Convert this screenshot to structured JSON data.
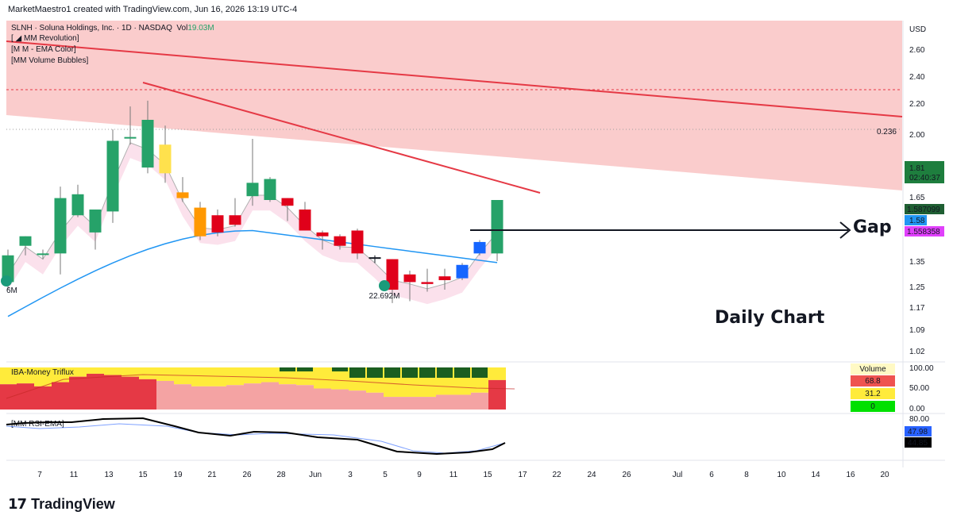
{
  "header": {
    "credit": "MarketMaestro1 created with TradingView.com, Jun 16, 2026 13:19 UTC-4"
  },
  "symbol": {
    "title": "SLNH · Soluna Holdings, Inc. · 1D · NASDAQ",
    "vol_label": "Vol",
    "vol_value": "19.03M",
    "indicators": [
      "[ ◢ MM Revolution]",
      "[M M - EMA Color]",
      "[MM Volume Bubbles]"
    ]
  },
  "annotations": {
    "daily_chart": "Daily Chart",
    "gap": "Gap",
    "fib_label": "0.236",
    "volume_bubble": "22.692M",
    "left_bubble_label": "6M"
  },
  "price_axis": {
    "currency": "USD",
    "ticks": [
      "2.60",
      "2.40",
      "2.20",
      "2.00",
      "1.81",
      "1.65",
      "1.58",
      "1.45",
      "1.35",
      "1.25",
      "1.17",
      "1.09",
      "1.02"
    ],
    "last_price": "1.81",
    "countdown": "02:40:37",
    "ema1": "1.587099",
    "ema2": "1.58",
    "ema3": "1.558358"
  },
  "time_axis": {
    "ticks": [
      "7",
      "11",
      "13",
      "15",
      "19",
      "21",
      "26",
      "28",
      "Jun",
      "3",
      "5",
      "9",
      "11",
      "15",
      "17",
      "22",
      "24",
      "26",
      "Jul",
      "6",
      "8",
      "10",
      "14",
      "16",
      "20"
    ]
  },
  "money_panel": {
    "title": "IBA-Money Triflux",
    "ticks": [
      "100.00",
      "50.00",
      "0.00"
    ],
    "table": [
      {
        "label": "Volume",
        "color": "#fff9c4"
      },
      {
        "label": "68.8",
        "color": "#ef5350"
      },
      {
        "label": "31.2",
        "color": "#ffeb3b"
      },
      {
        "label": "0",
        "color": "#4caf50"
      }
    ]
  },
  "rsi_panel": {
    "title": "[MM RSI-EMA]",
    "ticks": [
      "80.00"
    ],
    "rsi_value": "47.98",
    "ema_value": "44.85",
    "rsi_color": "#2962ff",
    "ema_color": "#000000"
  },
  "branding": {
    "logo_mark": "17",
    "logo_text": "TradingView"
  },
  "colors": {
    "up": "#26a269",
    "down": "#e0001a",
    "orange": "#ff9800",
    "yellow": "#ffe14d",
    "blue": "#1565ff",
    "trend": "#e53945",
    "zone": "#f9b4b4",
    "ema_blue": "#2196f3"
  },
  "chart_data": {
    "type": "candlestick",
    "symbol": "SLNH",
    "interval": "1D",
    "ylim": [
      1.0,
      2.7
    ],
    "candles": [
      {
        "o": 1.38,
        "h": 1.55,
        "l": 1.34,
        "c": 1.52,
        "color": "up"
      },
      {
        "o": 1.57,
        "h": 1.62,
        "l": 1.52,
        "c": 1.62,
        "color": "up"
      },
      {
        "o": 1.53,
        "h": 1.55,
        "l": 1.5,
        "c": 1.53,
        "color": "up"
      },
      {
        "o": 1.53,
        "h": 1.88,
        "l": 1.42,
        "c": 1.82,
        "color": "up"
      },
      {
        "o": 1.73,
        "h": 1.89,
        "l": 1.72,
        "c": 1.84,
        "color": "up"
      },
      {
        "o": 1.64,
        "h": 1.76,
        "l": 1.55,
        "c": 1.76,
        "color": "up"
      },
      {
        "o": 1.75,
        "h": 2.18,
        "l": 1.69,
        "c": 2.12,
        "color": "up"
      },
      {
        "o": 2.14,
        "h": 2.3,
        "l": 2.1,
        "c": 2.14,
        "color": "up"
      },
      {
        "o": 1.98,
        "h": 2.33,
        "l": 1.95,
        "c": 2.23,
        "color": "up"
      },
      {
        "o": 2.1,
        "h": 2.2,
        "l": 1.9,
        "c": 1.95,
        "color": "yellow"
      },
      {
        "o": 1.85,
        "h": 1.93,
        "l": 1.8,
        "c": 1.82,
        "color": "orange"
      },
      {
        "o": 1.77,
        "h": 1.8,
        "l": 1.6,
        "c": 1.62,
        "color": "orange"
      },
      {
        "o": 1.73,
        "h": 1.76,
        "l": 1.62,
        "c": 1.64,
        "color": "down"
      },
      {
        "o": 1.73,
        "h": 1.82,
        "l": 1.67,
        "c": 1.68,
        "color": "down"
      },
      {
        "o": 1.83,
        "h": 2.13,
        "l": 1.78,
        "c": 1.9,
        "color": "up"
      },
      {
        "o": 1.81,
        "h": 1.93,
        "l": 1.8,
        "c": 1.92,
        "color": "up"
      },
      {
        "o": 1.78,
        "h": 1.82,
        "l": 1.7,
        "c": 1.82,
        "color": "down"
      },
      {
        "o": 1.76,
        "h": 1.8,
        "l": 1.65,
        "c": 1.65,
        "color": "down"
      },
      {
        "o": 1.64,
        "h": 1.65,
        "l": 1.55,
        "c": 1.62,
        "color": "down"
      },
      {
        "o": 1.62,
        "h": 1.63,
        "l": 1.55,
        "c": 1.57,
        "color": "down"
      },
      {
        "o": 1.65,
        "h": 1.66,
        "l": 1.5,
        "c": 1.53,
        "color": "down"
      },
      {
        "o": 1.51,
        "h": 1.52,
        "l": 1.48,
        "c": 1.51,
        "color": "doji"
      },
      {
        "o": 1.5,
        "h": 1.5,
        "l": 1.27,
        "c": 1.34,
        "color": "down"
      },
      {
        "o": 1.42,
        "h": 1.44,
        "l": 1.28,
        "c": 1.38,
        "color": "down"
      },
      {
        "o": 1.38,
        "h": 1.45,
        "l": 1.33,
        "c": 1.37,
        "color": "down"
      },
      {
        "o": 1.41,
        "h": 1.45,
        "l": 1.34,
        "c": 1.39,
        "color": "down"
      },
      {
        "o": 1.4,
        "h": 1.48,
        "l": 1.39,
        "c": 1.47,
        "color": "blue"
      },
      {
        "o": 1.53,
        "h": 1.6,
        "l": 1.52,
        "c": 1.59,
        "color": "blue"
      },
      {
        "o": 1.53,
        "h": 1.81,
        "l": 1.49,
        "c": 1.81,
        "color": "up"
      }
    ]
  }
}
